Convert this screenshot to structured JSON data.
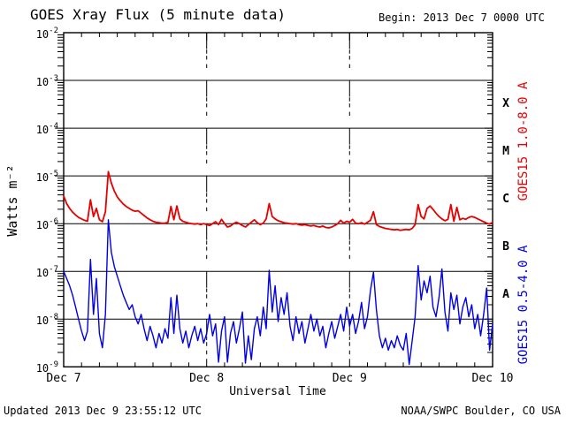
{
  "chart_data": {
    "type": "line",
    "title": "GOES Xray Flux (5 minute data)",
    "begin_label": "Begin:  2013 Dec 7 0000 UTC",
    "xlabel": "Universal Time",
    "ylabel": "Watts m⁻²",
    "xlim_hours": [
      0,
      72
    ],
    "ylim_log10": [
      -9,
      -2
    ],
    "grid": "horizontal solid lines at each decade, dashed vertical lines at day boundaries",
    "legend_position": "rotated labels at right edge",
    "y_ticks": [
      "-2",
      "-3",
      "-4",
      "-5",
      "-6",
      "-7",
      "-8",
      "-9"
    ],
    "y_gridlines_log10": [
      -3,
      -4,
      -5,
      -6,
      -7,
      -8
    ],
    "x_ticks": [
      {
        "label": "Dec 7",
        "t_hours": 0
      },
      {
        "label": "Dec 8",
        "t_hours": 24
      },
      {
        "label": "Dec 9",
        "t_hours": 48
      },
      {
        "label": "Dec 10",
        "t_hours": 72
      }
    ],
    "x_dashed_lines_hours": [
      24,
      48
    ],
    "x_minor_tick_hours": 3,
    "flare_classes": [
      {
        "label": "X",
        "log10_center": -3.5
      },
      {
        "label": "M",
        "log10_center": -4.5
      },
      {
        "label": "C",
        "log10_center": -5.5
      },
      {
        "label": "B",
        "log10_center": -6.5
      },
      {
        "label": "A",
        "log10_center": -7.5
      }
    ],
    "series": [
      {
        "name": "GOES15 1.0-8.0 A",
        "color": "#e60000",
        "t_start_hours": 0,
        "t_step_hours": 0.5,
        "log10_watts_m2": [
          -5.42,
          -5.58,
          -5.68,
          -5.76,
          -5.82,
          -5.87,
          -5.9,
          -5.93,
          -5.95,
          -5.5,
          -5.85,
          -5.68,
          -5.92,
          -5.96,
          -5.75,
          -4.91,
          -5.15,
          -5.32,
          -5.44,
          -5.52,
          -5.59,
          -5.64,
          -5.68,
          -5.72,
          -5.74,
          -5.73,
          -5.78,
          -5.83,
          -5.88,
          -5.92,
          -5.95,
          -5.97,
          -5.98,
          -5.99,
          -5.99,
          -5.97,
          -5.64,
          -5.92,
          -5.63,
          -5.9,
          -5.95,
          -5.97,
          -5.99,
          -6.0,
          -6.01,
          -6.0,
          -6.02,
          -6.0,
          -6.02,
          -6.04,
          -6.0,
          -5.96,
          -6.02,
          -5.91,
          -6.0,
          -6.07,
          -6.05,
          -6.0,
          -5.97,
          -6.0,
          -6.04,
          -6.07,
          -6.02,
          -5.97,
          -5.92,
          -5.98,
          -6.02,
          -5.99,
          -5.9,
          -5.58,
          -5.85,
          -5.9,
          -5.94,
          -5.96,
          -5.98,
          -5.99,
          -6.0,
          -6.01,
          -6.0,
          -6.02,
          -6.03,
          -6.02,
          -6.04,
          -6.05,
          -6.04,
          -6.06,
          -6.07,
          -6.05,
          -6.08,
          -6.09,
          -6.07,
          -6.04,
          -6.0,
          -5.93,
          -5.99,
          -5.95,
          -5.97,
          -5.91,
          -5.99,
          -6.0,
          -5.98,
          -6.01,
          -5.97,
          -5.93,
          -5.75,
          -6.02,
          -6.06,
          -6.08,
          -6.1,
          -6.11,
          -6.12,
          -6.13,
          -6.12,
          -6.14,
          -6.13,
          -6.12,
          -6.13,
          -6.1,
          -6.02,
          -5.6,
          -5.85,
          -5.9,
          -5.68,
          -5.63,
          -5.7,
          -5.78,
          -5.85,
          -5.9,
          -5.94,
          -5.91,
          -5.6,
          -5.95,
          -5.66,
          -5.92,
          -5.89,
          -5.91,
          -5.87,
          -5.85,
          -5.87,
          -5.9,
          -5.93,
          -5.96,
          -5.99,
          -6.01,
          -5.97
        ]
      },
      {
        "name": "GOES15 0.5-4.0 A",
        "color": "#0000e6",
        "t_start_hours": 0,
        "t_step_hours": 0.5,
        "log10_watts_m2": [
          -7.0,
          -7.15,
          -7.3,
          -7.5,
          -7.75,
          -8.0,
          -8.25,
          -8.45,
          -8.25,
          -6.75,
          -7.9,
          -7.15,
          -8.3,
          -8.6,
          -7.9,
          -5.92,
          -6.6,
          -6.9,
          -7.1,
          -7.3,
          -7.5,
          -7.65,
          -7.8,
          -7.7,
          -7.95,
          -8.1,
          -7.9,
          -8.2,
          -8.45,
          -8.15,
          -8.35,
          -8.6,
          -8.3,
          -8.5,
          -8.2,
          -8.4,
          -7.55,
          -8.3,
          -7.5,
          -8.2,
          -8.5,
          -8.25,
          -8.6,
          -8.35,
          -8.15,
          -8.45,
          -8.2,
          -8.5,
          -8.3,
          -7.9,
          -8.35,
          -8.1,
          -8.9,
          -8.25,
          -7.95,
          -8.9,
          -8.3,
          -8.05,
          -8.5,
          -8.2,
          -7.85,
          -8.92,
          -8.35,
          -8.85,
          -8.2,
          -7.95,
          -8.35,
          -7.75,
          -8.2,
          -6.98,
          -7.85,
          -7.3,
          -8.05,
          -7.55,
          -7.9,
          -7.45,
          -8.15,
          -8.45,
          -7.95,
          -8.3,
          -8.05,
          -8.5,
          -8.2,
          -7.9,
          -8.25,
          -8.0,
          -8.35,
          -8.15,
          -8.6,
          -8.3,
          -8.05,
          -8.4,
          -8.15,
          -7.9,
          -8.25,
          -7.75,
          -8.15,
          -7.9,
          -8.3,
          -8.05,
          -7.65,
          -8.2,
          -7.95,
          -7.4,
          -7.02,
          -7.8,
          -8.35,
          -8.6,
          -8.4,
          -8.65,
          -8.45,
          -8.6,
          -8.35,
          -8.55,
          -8.65,
          -8.3,
          -8.95,
          -8.45,
          -7.95,
          -6.88,
          -7.6,
          -7.2,
          -7.45,
          -7.1,
          -7.75,
          -7.95,
          -7.55,
          -6.95,
          -7.85,
          -8.25,
          -7.45,
          -7.8,
          -7.5,
          -8.1,
          -7.75,
          -7.55,
          -7.95,
          -7.7,
          -8.2,
          -7.9,
          -8.35,
          -7.9,
          -7.35,
          -8.65,
          -8.1
        ]
      }
    ],
    "footer": {
      "updated": "Updated 2013 Dec  9 23:55:12 UTC",
      "source": "NOAA/SWPC Boulder, CO USA"
    },
    "colors": {
      "long_channel": "#e60000",
      "short_channel": "#0000e6",
      "axis": "#000000",
      "background": "#ffffff"
    }
  }
}
